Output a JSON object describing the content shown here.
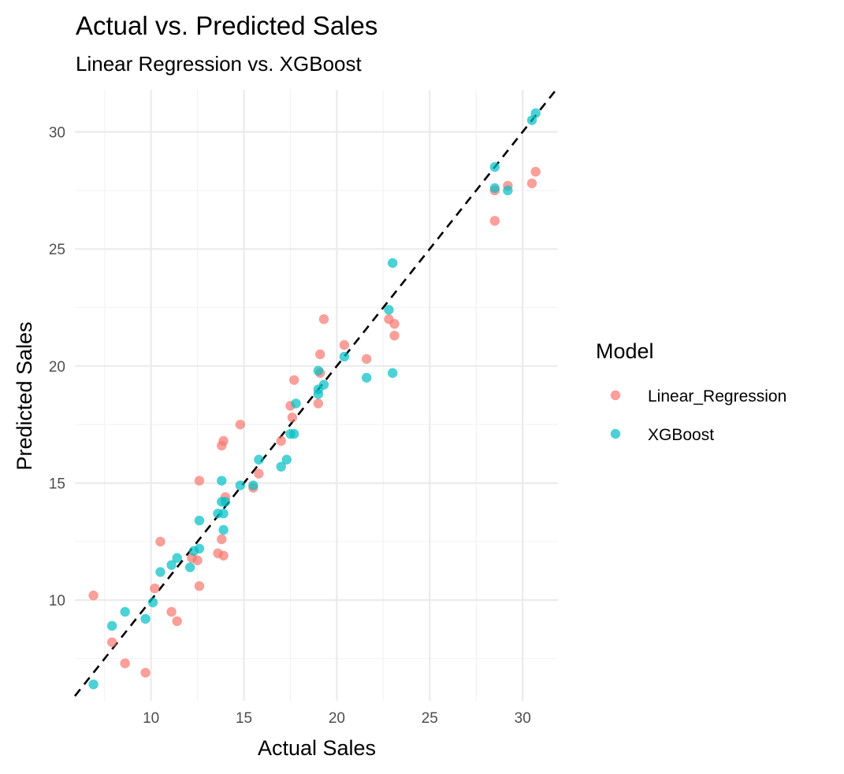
{
  "chart_data": {
    "type": "scatter",
    "title": "Actual vs. Predicted Sales",
    "subtitle": "Linear Regression vs. XGBoost",
    "xlabel": "Actual Sales",
    "ylabel": "Predicted Sales",
    "xlim": [
      5.9,
      31.9
    ],
    "ylim": [
      5.7,
      31.8
    ],
    "x_ticks": [
      10,
      15,
      20,
      25,
      30
    ],
    "y_ticks": [
      10,
      15,
      20,
      25,
      30
    ],
    "grid": true,
    "legend": {
      "title": "Model",
      "placement": "right"
    },
    "reference_line": {
      "type": "identity",
      "style": "dashed",
      "color": "#000000"
    },
    "series": [
      {
        "name": "Linear_Regression",
        "color": "#F8766D",
        "points": [
          [
            6.9,
            10.2
          ],
          [
            7.9,
            8.2
          ],
          [
            8.6,
            7.3
          ],
          [
            9.7,
            6.9
          ],
          [
            10.2,
            10.5
          ],
          [
            10.5,
            12.5
          ],
          [
            11.1,
            9.5
          ],
          [
            11.4,
            9.1
          ],
          [
            12.2,
            11.8
          ],
          [
            12.5,
            11.7
          ],
          [
            12.6,
            15.1
          ],
          [
            12.6,
            10.6
          ],
          [
            13.6,
            12.0
          ],
          [
            13.8,
            12.6
          ],
          [
            13.9,
            11.9
          ],
          [
            13.8,
            16.6
          ],
          [
            13.9,
            16.8
          ],
          [
            14.0,
            14.4
          ],
          [
            14.8,
            17.5
          ],
          [
            15.5,
            14.8
          ],
          [
            15.8,
            15.4
          ],
          [
            17.0,
            16.8
          ],
          [
            17.5,
            18.3
          ],
          [
            17.6,
            17.8
          ],
          [
            17.7,
            19.4
          ],
          [
            19.0,
            18.4
          ],
          [
            19.1,
            20.5
          ],
          [
            19.1,
            19.7
          ],
          [
            19.3,
            22.0
          ],
          [
            20.4,
            20.9
          ],
          [
            21.6,
            20.3
          ],
          [
            22.8,
            22.0
          ],
          [
            23.1,
            21.8
          ],
          [
            23.1,
            21.3
          ],
          [
            28.5,
            27.5
          ],
          [
            28.5,
            26.2
          ],
          [
            29.2,
            27.7
          ],
          [
            30.5,
            27.8
          ],
          [
            30.7,
            28.3
          ]
        ]
      },
      {
        "name": "XGBoost",
        "color": "#00BFC4",
        "points": [
          [
            6.9,
            6.4
          ],
          [
            7.9,
            8.9
          ],
          [
            8.6,
            9.5
          ],
          [
            9.7,
            9.2
          ],
          [
            10.1,
            9.9
          ],
          [
            10.5,
            11.2
          ],
          [
            11.1,
            11.5
          ],
          [
            11.4,
            11.8
          ],
          [
            12.1,
            11.4
          ],
          [
            12.3,
            12.1
          ],
          [
            12.6,
            12.2
          ],
          [
            12.6,
            13.4
          ],
          [
            13.6,
            13.7
          ],
          [
            13.8,
            15.1
          ],
          [
            13.8,
            14.2
          ],
          [
            13.9,
            13.7
          ],
          [
            13.9,
            13.0
          ],
          [
            14.0,
            14.2
          ],
          [
            14.8,
            14.9
          ],
          [
            15.5,
            14.9
          ],
          [
            15.8,
            16.0
          ],
          [
            17.0,
            15.7
          ],
          [
            17.3,
            16.0
          ],
          [
            17.5,
            17.1
          ],
          [
            17.7,
            17.1
          ],
          [
            17.8,
            18.4
          ],
          [
            19.0,
            19.8
          ],
          [
            19.0,
            18.8
          ],
          [
            19.0,
            19.0
          ],
          [
            19.3,
            19.2
          ],
          [
            20.4,
            20.4
          ],
          [
            21.6,
            19.5
          ],
          [
            22.8,
            22.4
          ],
          [
            23.0,
            24.4
          ],
          [
            23.0,
            19.7
          ],
          [
            28.5,
            28.5
          ],
          [
            28.5,
            27.6
          ],
          [
            29.2,
            27.5
          ],
          [
            30.5,
            30.5
          ],
          [
            30.7,
            30.8
          ]
        ]
      }
    ]
  }
}
